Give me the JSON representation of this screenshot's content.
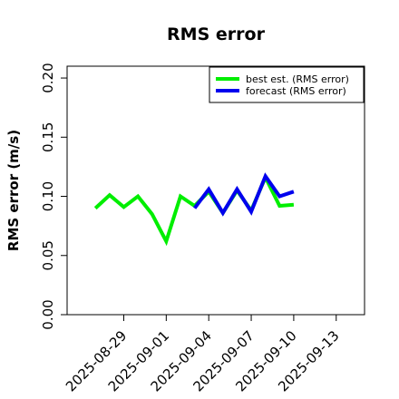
{
  "chart_data": {
    "type": "line",
    "title": "RMS error",
    "ylabel": "RMS error (m/s)",
    "xlabel": "",
    "ylim": [
      0.0,
      0.21
    ],
    "yticks": [
      "0.00",
      "0.05",
      "0.10",
      "0.15",
      "0.20"
    ],
    "ytick_values": [
      0.0,
      0.05,
      0.1,
      0.15,
      0.2
    ],
    "xlim": [
      "2025-08-25",
      "2025-09-15"
    ],
    "xticks": [
      "2025-08-29",
      "2025-09-01",
      "2025-09-04",
      "2025-09-07",
      "2025-09-10",
      "2025-09-13"
    ],
    "highlighted_xtick": "2025-09-04",
    "highlight_color": "#228B22",
    "grid": false,
    "legend_position": "top-right",
    "series": [
      {
        "name": "best est. (RMS error)",
        "color": "#00ee00",
        "points": [
          [
            "2025-08-27",
            0.09
          ],
          [
            "2025-08-28",
            0.101
          ],
          [
            "2025-08-29",
            0.091
          ],
          [
            "2025-08-30",
            0.1
          ],
          [
            "2025-08-31",
            0.085
          ],
          [
            "2025-09-01",
            0.062
          ],
          [
            "2025-09-02",
            0.1
          ],
          [
            "2025-09-03",
            0.092
          ],
          [
            "2025-09-04",
            0.104
          ],
          [
            "2025-09-05",
            0.086
          ],
          [
            "2025-09-06",
            0.105
          ],
          [
            "2025-09-07",
            0.088
          ],
          [
            "2025-09-08",
            0.116
          ],
          [
            "2025-09-09",
            0.092
          ],
          [
            "2025-09-10",
            0.093
          ]
        ]
      },
      {
        "name": "forecast (RMS error)",
        "color": "#0000ee",
        "points": [
          [
            "2025-09-03",
            0.09
          ],
          [
            "2025-09-04",
            0.106
          ],
          [
            "2025-09-05",
            0.086
          ],
          [
            "2025-09-06",
            0.106
          ],
          [
            "2025-09-07",
            0.087
          ],
          [
            "2025-09-08",
            0.117
          ],
          [
            "2025-09-09",
            0.1
          ],
          [
            "2025-09-10",
            0.104
          ]
        ]
      }
    ]
  }
}
